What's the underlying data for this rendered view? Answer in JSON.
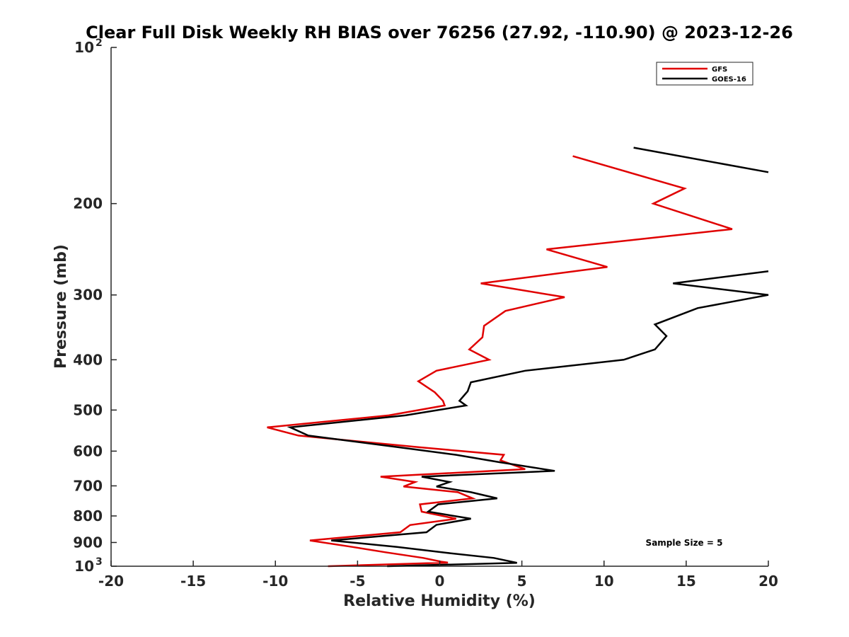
{
  "chart_data": {
    "type": "line",
    "title": "Clear Full Disk Weekly RH BIAS over 76256 (27.92, -110.90) @ 2023-12-26",
    "xlabel": "Relative Humidity (%)",
    "ylabel": "Pressure (mb)",
    "xlim": [
      -20,
      20
    ],
    "ylim": [
      100,
      1000
    ],
    "yscale": "log",
    "y_reversed": true,
    "x_ticks": [
      "-20",
      "-15",
      "-10",
      "-5",
      "0",
      "5",
      "10",
      "15",
      "20"
    ],
    "y_ticks": [
      {
        "value": 100,
        "label": "10",
        "sup": "2"
      },
      {
        "value": 200,
        "label": "200",
        "sup": ""
      },
      {
        "value": 300,
        "label": "300",
        "sup": ""
      },
      {
        "value": 400,
        "label": "400",
        "sup": ""
      },
      {
        "value": 500,
        "label": "500",
        "sup": ""
      },
      {
        "value": 600,
        "label": "600",
        "sup": ""
      },
      {
        "value": 700,
        "label": "700",
        "sup": ""
      },
      {
        "value": 800,
        "label": "800",
        "sup": ""
      },
      {
        "value": 900,
        "label": "900",
        "sup": ""
      },
      {
        "value": 1000,
        "label": "10",
        "sup": "3"
      }
    ],
    "series": [
      {
        "name": "GFS",
        "color": "#e00000",
        "points": [
          [
            8.1,
            162
          ],
          [
            14.9,
            187
          ],
          [
            13.0,
            200
          ],
          [
            17.8,
            224
          ],
          [
            6.5,
            245
          ],
          [
            10.2,
            265
          ],
          [
            2.5,
            285
          ],
          [
            7.6,
            303
          ],
          [
            4.0,
            322
          ],
          [
            2.7,
            344
          ],
          [
            2.6,
            362
          ],
          [
            1.8,
            382
          ],
          [
            3.0,
            400
          ],
          [
            -0.2,
            420
          ],
          [
            -1.3,
            440
          ],
          [
            -0.3,
            462
          ],
          [
            0.2,
            480
          ],
          [
            0.3,
            490
          ],
          [
            -3.1,
            512
          ],
          [
            -10.5,
            540
          ],
          [
            -8.6,
            560
          ],
          [
            -1.2,
            590
          ],
          [
            3.9,
            610
          ],
          [
            3.7,
            625
          ],
          [
            5.2,
            650
          ],
          [
            -3.6,
            672
          ],
          [
            -1.5,
            688
          ],
          [
            -2.2,
            702
          ],
          [
            1.1,
            720
          ],
          [
            2.0,
            740
          ],
          [
            -1.2,
            760
          ],
          [
            -1.1,
            785
          ],
          [
            1.0,
            810
          ],
          [
            -1.8,
            833
          ],
          [
            -2.4,
            860
          ],
          [
            -7.9,
            892
          ],
          [
            -5.3,
            918
          ],
          [
            -3.3,
            940
          ],
          [
            -1.0,
            964
          ],
          [
            0.1,
            980
          ],
          [
            0.5,
            984
          ],
          [
            -6.8,
            1000
          ]
        ]
      },
      {
        "name": "GOES-16",
        "color": "#000000",
        "points": [
          [
            11.8,
            156
          ],
          [
            20.0,
            174
          ],
          null,
          [
            20.0,
            270
          ],
          [
            14.2,
            285
          ],
          [
            20.0,
            300
          ],
          [
            15.7,
            318
          ],
          [
            13.1,
            342
          ],
          [
            13.8,
            360
          ],
          [
            13.1,
            382
          ],
          [
            11.2,
            400
          ],
          [
            5.2,
            420
          ],
          [
            1.9,
            442
          ],
          [
            1.7,
            460
          ],
          [
            1.2,
            480
          ],
          [
            1.6,
            490
          ],
          [
            -2.1,
            512
          ],
          [
            -9.1,
            540
          ],
          [
            -8.0,
            560
          ],
          [
            -2.8,
            588
          ],
          [
            1.0,
            610
          ],
          [
            3.6,
            630
          ],
          [
            7.0,
            655
          ],
          [
            -1.1,
            672
          ],
          [
            0.6,
            688
          ],
          [
            -0.2,
            702
          ],
          [
            1.9,
            720
          ],
          [
            3.5,
            740
          ],
          [
            -0.1,
            760
          ],
          [
            -0.7,
            785
          ],
          [
            1.9,
            810
          ],
          [
            -0.2,
            832
          ],
          [
            -0.8,
            860
          ],
          [
            -6.6,
            892
          ],
          [
            -2.6,
            918
          ],
          [
            0.4,
            942
          ],
          [
            3.3,
            964
          ],
          [
            4.7,
            985
          ],
          [
            -3.2,
            1000
          ]
        ]
      }
    ],
    "legend": {
      "position": "top-right",
      "entries": [
        "GFS",
        "GOES-16"
      ]
    },
    "annotations": [
      "Sample Size = 5"
    ]
  }
}
